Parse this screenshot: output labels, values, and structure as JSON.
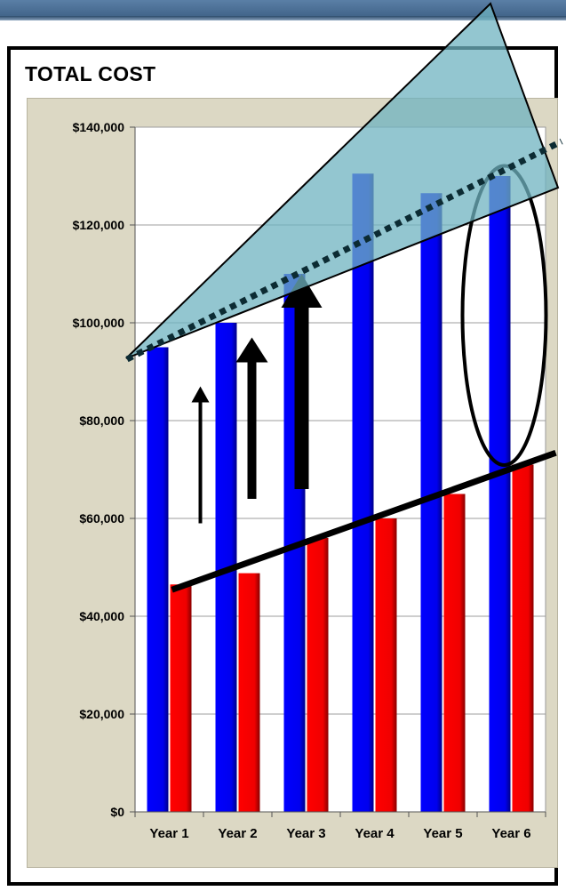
{
  "chart_data": {
    "type": "bar",
    "title": "TOTAL COST",
    "xlabel": "",
    "ylabel": "",
    "categories": [
      "Year 1",
      "Year 2",
      "Year 3",
      "Year 4",
      "Year 5",
      "Year 6"
    ],
    "series": [
      {
        "color": "#0000ff",
        "values": [
          95000,
          100000,
          110000,
          130500,
          126500,
          130000
        ]
      },
      {
        "color": "#ff0000",
        "values": [
          46500,
          48800,
          56000,
          60000,
          65000,
          71000
        ]
      }
    ],
    "ylim": [
      0,
      140000
    ],
    "yticks": [
      0,
      20000,
      40000,
      60000,
      80000,
      100000,
      120000,
      140000
    ],
    "ytick_labels": [
      "$0",
      "$20,000",
      "$40,000",
      "$60,000",
      "$80,000",
      "$100,000",
      "$120,000",
      "$140,000"
    ],
    "grid": true,
    "legend": "none",
    "annotations": [
      {
        "kind": "arrow",
        "label": "increase-arrow-small",
        "at_category": 1,
        "from_value": 59000,
        "to_value": 87000
      },
      {
        "kind": "arrow",
        "label": "increase-arrow-medium",
        "at_category": 2,
        "from_value": 64000,
        "to_value": 97000
      },
      {
        "kind": "arrow",
        "label": "increase-arrow-large",
        "at_category": 3,
        "from_value": 66000,
        "to_value": 110000
      },
      {
        "kind": "trend-line",
        "label": "red-trend-line",
        "from": [
          1,
          46500
        ],
        "to": [
          6,
          72500
        ]
      },
      {
        "kind": "dotted-trend-line",
        "label": "blue-trend-line",
        "from": [
          1,
          93000
        ],
        "to": [
          6,
          137000
        ]
      },
      {
        "kind": "ellipse",
        "label": "year-6-gap-ellipse",
        "at_category": 6,
        "from_value": 72000,
        "to_value": 131000
      },
      {
        "kind": "triangle",
        "label": "growth-wedge",
        "color": "#6fb3c0"
      }
    ]
  }
}
